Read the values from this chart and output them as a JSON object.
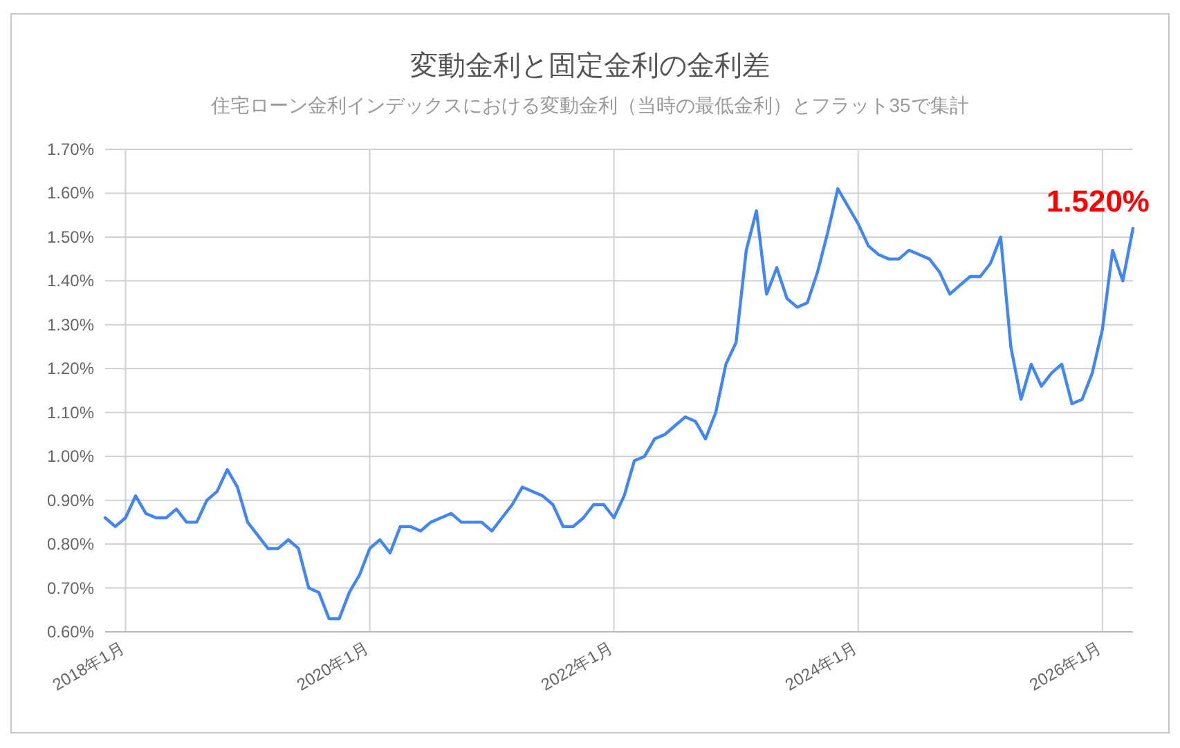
{
  "chart_data": {
    "type": "line",
    "title": "変動金利と固定金利の金利差",
    "subtitle": "住宅ローン金利インデックスにおける変動金利（当時の最低金利）とフラット35で集計",
    "x": [
      "2017-11",
      "2017-12",
      "2018-01",
      "2018-02",
      "2018-03",
      "2018-04",
      "2018-05",
      "2018-06",
      "2018-07",
      "2018-08",
      "2018-09",
      "2018-10",
      "2018-11",
      "2018-12",
      "2019-01",
      "2019-02",
      "2019-03",
      "2019-04",
      "2019-05",
      "2019-06",
      "2019-07",
      "2019-08",
      "2019-09",
      "2019-10",
      "2019-11",
      "2019-12",
      "2020-01",
      "2020-02",
      "2020-03",
      "2020-04",
      "2020-05",
      "2020-06",
      "2020-07",
      "2020-08",
      "2020-09",
      "2020-10",
      "2020-11",
      "2020-12",
      "2021-01",
      "2021-02",
      "2021-03",
      "2021-04",
      "2021-05",
      "2021-06",
      "2021-07",
      "2021-08",
      "2021-09",
      "2021-10",
      "2021-11",
      "2021-12",
      "2022-01",
      "2022-02",
      "2022-03",
      "2022-04",
      "2022-05",
      "2022-06",
      "2022-07",
      "2022-08",
      "2022-09",
      "2022-10",
      "2022-11",
      "2022-12",
      "2023-01",
      "2023-02",
      "2023-03",
      "2023-04",
      "2023-05",
      "2023-06",
      "2023-07",
      "2023-08",
      "2023-09",
      "2023-10",
      "2023-11",
      "2023-12",
      "2024-01",
      "2024-02",
      "2024-03",
      "2024-04",
      "2024-05",
      "2024-06",
      "2024-07",
      "2024-08",
      "2024-09",
      "2024-10",
      "2024-11",
      "2024-12",
      "2025-01",
      "2025-02",
      "2025-03",
      "2025-04",
      "2025-05",
      "2025-06",
      "2025-07",
      "2025-08",
      "2025-09",
      "2025-10",
      "2025-11",
      "2025-12",
      "2026-01",
      "2026-02",
      "2026-03",
      "2026-04"
    ],
    "series": [
      {
        "color": "#4285f4",
        "values": [
          0.86,
          0.84,
          0.86,
          0.91,
          0.87,
          0.86,
          0.86,
          0.88,
          0.85,
          0.85,
          0.9,
          0.92,
          0.97,
          0.93,
          0.85,
          0.82,
          0.79,
          0.79,
          0.81,
          0.79,
          0.7,
          0.69,
          0.63,
          0.63,
          0.69,
          0.73,
          0.79,
          0.81,
          0.78,
          0.84,
          0.84,
          0.83,
          0.85,
          0.86,
          0.87,
          0.85,
          0.85,
          0.85,
          0.83,
          0.86,
          0.89,
          0.93,
          0.92,
          0.91,
          0.89,
          0.84,
          0.84,
          0.86,
          0.89,
          0.89,
          0.86,
          0.91,
          0.99,
          1.0,
          1.04,
          1.05,
          1.07,
          1.09,
          1.08,
          1.04,
          1.1,
          1.21,
          1.26,
          1.47,
          1.56,
          1.37,
          1.43,
          1.36,
          1.34,
          1.35,
          1.42,
          1.51,
          1.61,
          1.57,
          1.53,
          1.48,
          1.46,
          1.45,
          1.45,
          1.47,
          1.46,
          1.45,
          1.42,
          1.37,
          1.39,
          1.41,
          1.41,
          1.44,
          1.5,
          1.25,
          1.13,
          1.21,
          1.16,
          1.19,
          1.21,
          1.12,
          1.13,
          1.19,
          1.29,
          1.47,
          1.4,
          1.52
        ]
      }
    ],
    "xlim": [
      "2017-11",
      "2026-04"
    ],
    "xticks": [
      {
        "value": "2018-01",
        "label": "2018年1月"
      },
      {
        "value": "2020-01",
        "label": "2020年1月"
      },
      {
        "value": "2022-01",
        "label": "2022年1月"
      },
      {
        "value": "2024-01",
        "label": "2024年1月"
      },
      {
        "value": "2026-01",
        "label": "2026年1月"
      }
    ],
    "ylim": [
      0.6,
      1.7
    ],
    "yticks": [
      {
        "value": 0.6,
        "label": "0.60%"
      },
      {
        "value": 0.7,
        "label": "0.70%"
      },
      {
        "value": 0.8,
        "label": "0.80%"
      },
      {
        "value": 0.9,
        "label": "0.90%"
      },
      {
        "value": 1.0,
        "label": "1.00%"
      },
      {
        "value": 1.1,
        "label": "1.10%"
      },
      {
        "value": 1.2,
        "label": "1.20%"
      },
      {
        "value": 1.3,
        "label": "1.30%"
      },
      {
        "value": 1.4,
        "label": "1.40%"
      },
      {
        "value": 1.5,
        "label": "1.50%"
      },
      {
        "value": 1.6,
        "label": "1.60%"
      },
      {
        "value": 1.7,
        "label": "1.70%"
      }
    ],
    "grid": true,
    "annotations": [
      {
        "text": "1.520%",
        "x": "2026-04",
        "y": 1.52
      }
    ]
  }
}
